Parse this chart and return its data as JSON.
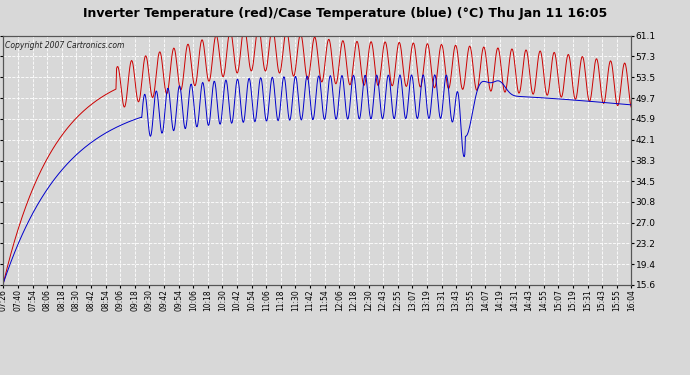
{
  "title": "Inverter Temperature (red)/Case Temperature (blue) (°C) Thu Jan 11 16:05",
  "copyright": "Copyright 2007 Cartronics.com",
  "yticks": [
    15.6,
    19.4,
    23.2,
    27.0,
    30.8,
    34.5,
    38.3,
    42.1,
    45.9,
    49.7,
    53.5,
    57.3,
    61.1
  ],
  "ylim": [
    15.6,
    61.1
  ],
  "bg_color": "#d8d8d8",
  "plot_bg_color": "#d8d8d8",
  "red_color": "#cc0000",
  "blue_color": "#0000cc",
  "grid_color": "#ffffff",
  "xtick_labels": [
    "07:26",
    "07:40",
    "07:54",
    "08:06",
    "08:18",
    "08:30",
    "08:42",
    "08:54",
    "09:06",
    "09:18",
    "09:30",
    "09:42",
    "09:54",
    "10:06",
    "10:18",
    "10:30",
    "10:42",
    "10:54",
    "11:06",
    "11:18",
    "11:30",
    "11:42",
    "11:54",
    "12:06",
    "12:18",
    "12:30",
    "12:43",
    "12:55",
    "13:07",
    "13:19",
    "13:31",
    "13:43",
    "13:55",
    "14:07",
    "14:19",
    "14:31",
    "14:43",
    "14:55",
    "15:07",
    "15:19",
    "15:31",
    "15:43",
    "15:55",
    "16:04"
  ]
}
